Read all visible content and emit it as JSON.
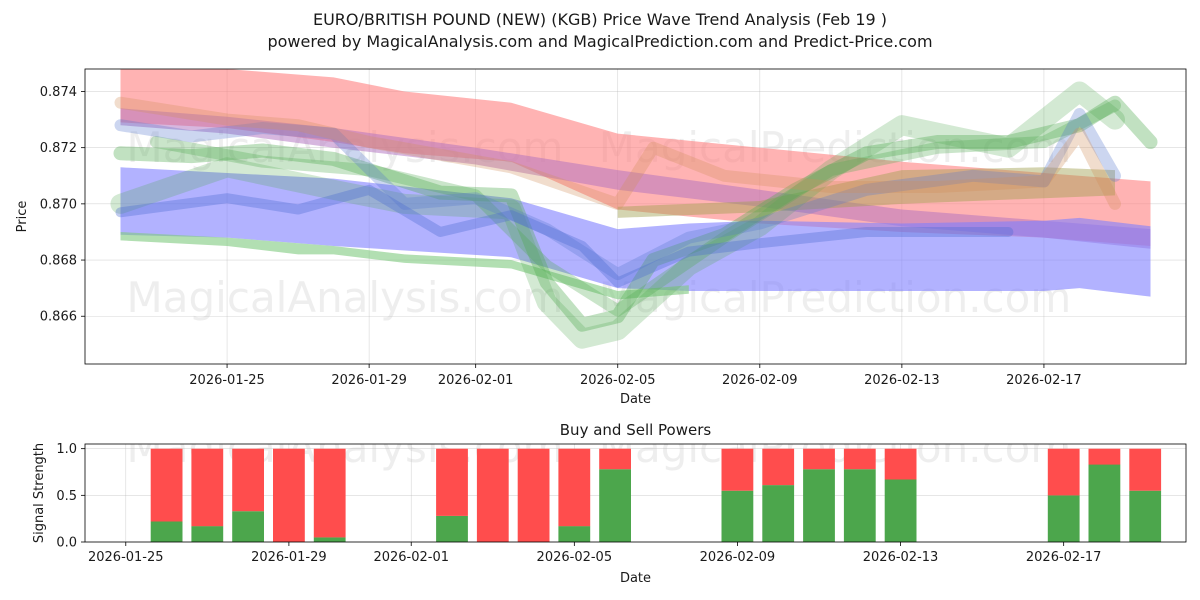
{
  "title_line1": "EURO/BRITISH POUND (NEW) (KGB) Price Wave Trend Analysis (Feb 19 )",
  "title_line2": "powered by MagicalAnalysis.com and MagicalPrediction.com and Predict-Price.com",
  "watermarks": [
    "MagicalAnalysis.com",
    "MagicalPrediction.com"
  ],
  "chart_data": [
    {
      "type": "area",
      "title": "EURO/BRITISH POUND (NEW) (KGB) Price Wave Trend Analysis (Feb 19 )",
      "xlabel": "Date",
      "ylabel": "Price",
      "xlim": [
        "2026-01-21",
        "2026-02-21"
      ],
      "ylim": [
        0.8643,
        0.8748
      ],
      "x_ticks": [
        "2026-01-25",
        "2026-01-29",
        "2026-02-01",
        "2026-02-05",
        "2026-02-09",
        "2026-02-13",
        "2026-02-17"
      ],
      "y_ticks": [
        0.866,
        0.868,
        0.87,
        0.872,
        0.874
      ],
      "y_tick_labels": [
        "0.866",
        "0.868",
        "0.870",
        "0.872",
        "0.874"
      ],
      "grid": true,
      "bands": [
        {
          "name": "red upper band",
          "color": "#ff8080",
          "opacity": 0.6,
          "x": [
            "2026-01-22",
            "2026-01-25",
            "2026-01-28",
            "2026-01-30",
            "2026-02-02",
            "2026-02-05",
            "2026-02-09",
            "2026-02-13",
            "2026-02-17",
            "2026-02-20"
          ],
          "upper": [
            0.875,
            0.8748,
            0.8745,
            0.874,
            0.8736,
            0.8725,
            0.872,
            0.8715,
            0.8711,
            0.8708
          ],
          "lower": [
            0.8729,
            0.8727,
            0.8722,
            0.8718,
            0.8715,
            0.8698,
            0.8693,
            0.869,
            0.8688,
            0.8685
          ]
        },
        {
          "name": "purple band",
          "color": "#b070c0",
          "opacity": 0.5,
          "x": [
            "2026-01-22",
            "2026-01-25",
            "2026-01-28",
            "2026-02-01",
            "2026-02-05",
            "2026-02-09",
            "2026-02-13",
            "2026-02-17",
            "2026-02-20"
          ],
          "upper": [
            0.8734,
            0.8731,
            0.8727,
            0.872,
            0.8712,
            0.8705,
            0.8698,
            0.8694,
            0.8691
          ],
          "lower": [
            0.8728,
            0.8725,
            0.872,
            0.8714,
            0.8705,
            0.8699,
            0.8692,
            0.8688,
            0.8684
          ]
        },
        {
          "name": "blue band",
          "color": "#7f7fff",
          "opacity": 0.6,
          "x": [
            "2026-01-22",
            "2026-01-25",
            "2026-01-28",
            "2026-02-02",
            "2026-02-05",
            "2026-02-07",
            "2026-02-09",
            "2026-02-13",
            "2026-02-17",
            "2026-02-18",
            "2026-02-20"
          ],
          "upper": [
            0.8713,
            0.8711,
            0.8709,
            0.8702,
            0.8691,
            0.8693,
            0.8694,
            0.8693,
            0.8694,
            0.8695,
            0.8692
          ],
          "lower": [
            0.8689,
            0.8688,
            0.8685,
            0.8681,
            0.867,
            0.8669,
            0.8669,
            0.8669,
            0.8669,
            0.867,
            0.8667
          ]
        },
        {
          "name": "green lower band",
          "color": "#7fc97f",
          "opacity": 0.6,
          "x": [
            "2026-01-22",
            "2026-01-25",
            "2026-01-27",
            "2026-01-28",
            "2026-01-30",
            "2026-02-02",
            "2026-02-05",
            "2026-02-07"
          ],
          "upper": [
            0.869,
            0.8688,
            0.8686,
            0.8685,
            0.8682,
            0.868,
            0.8669,
            0.8671
          ],
          "lower": [
            0.8687,
            0.8685,
            0.8682,
            0.8682,
            0.8679,
            0.8677,
            0.8666,
            0.8668
          ]
        },
        {
          "name": "olive band",
          "color": "#a0a050",
          "opacity": 0.45,
          "x": [
            "2026-02-05",
            "2026-02-09",
            "2026-02-13",
            "2026-02-17",
            "2026-02-19"
          ],
          "upper": [
            0.8699,
            0.8701,
            0.8712,
            0.8713,
            0.8712
          ],
          "lower": [
            0.8695,
            0.8697,
            0.87,
            0.8702,
            0.8703
          ]
        }
      ],
      "wave_lines": [
        {
          "name": "green wave 1",
          "color": "#4ea94e",
          "opacity": 0.35,
          "width": 14,
          "x": [
            "2026-01-22",
            "2026-01-24",
            "2026-01-26",
            "2026-01-28",
            "2026-01-29",
            "2026-01-31",
            "2026-02-02",
            "2026-02-03",
            "2026-02-04",
            "2026-02-05",
            "2026-02-06",
            "2026-02-08",
            "2026-02-10",
            "2026-02-12",
            "2026-02-14",
            "2026-02-16",
            "2026-02-18",
            "2026-02-19",
            "2026-02-20"
          ],
          "y": [
            0.8718,
            0.8717,
            0.8719,
            0.8716,
            0.8712,
            0.8704,
            0.8703,
            0.8672,
            0.8657,
            0.866,
            0.868,
            0.8689,
            0.8705,
            0.8718,
            0.8722,
            0.8722,
            0.8728,
            0.8736,
            0.8722
          ]
        },
        {
          "name": "green wave 2",
          "color": "#4ea94e",
          "opacity": 0.25,
          "width": 20,
          "x": [
            "2026-01-22",
            "2026-01-25",
            "2026-01-28",
            "2026-01-30",
            "2026-02-02",
            "2026-02-03",
            "2026-02-04",
            "2026-02-05",
            "2026-02-07",
            "2026-02-09",
            "2026-02-11",
            "2026-02-13",
            "2026-02-16",
            "2026-02-18",
            "2026-02-19"
          ],
          "y": [
            0.87,
            0.8713,
            0.8705,
            0.87,
            0.8698,
            0.8665,
            0.8652,
            0.8655,
            0.8678,
            0.8692,
            0.8712,
            0.8728,
            0.872,
            0.874,
            0.873
          ]
        },
        {
          "name": "green wave 3",
          "color": "#4ea94e",
          "opacity": 0.3,
          "width": 12,
          "x": [
            "2026-01-23",
            "2026-01-26",
            "2026-01-29",
            "2026-02-01",
            "2026-02-03",
            "2026-02-05",
            "2026-02-08",
            "2026-02-11",
            "2026-02-14",
            "2026-02-17",
            "2026-02-19"
          ],
          "y": [
            0.8722,
            0.8715,
            0.8712,
            0.8703,
            0.8678,
            0.8662,
            0.8688,
            0.8712,
            0.872,
            0.8722,
            0.8735
          ]
        },
        {
          "name": "blue wave",
          "color": "#5577cc",
          "opacity": 0.3,
          "width": 12,
          "x": [
            "2026-01-22",
            "2026-01-24",
            "2026-01-26",
            "2026-01-28",
            "2026-01-30",
            "2026-02-01",
            "2026-02-03",
            "2026-02-05",
            "2026-02-07",
            "2026-02-09",
            "2026-02-12",
            "2026-02-15",
            "2026-02-17",
            "2026-02-18",
            "2026-02-19"
          ],
          "y": [
            0.8728,
            0.8724,
            0.8727,
            0.8725,
            0.87,
            0.8702,
            0.8691,
            0.8675,
            0.8688,
            0.8693,
            0.8705,
            0.871,
            0.8708,
            0.8732,
            0.871
          ]
        },
        {
          "name": "orange wave",
          "color": "#d0905a",
          "opacity": 0.3,
          "width": 12,
          "x": [
            "2026-01-22",
            "2026-01-25",
            "2026-01-27",
            "2026-01-29",
            "2026-02-02",
            "2026-02-05",
            "2026-02-06",
            "2026-02-08",
            "2026-02-11",
            "2026-02-14",
            "2026-02-17",
            "2026-02-18",
            "2026-02-19"
          ],
          "y": [
            0.8736,
            0.873,
            0.8728,
            0.8722,
            0.8713,
            0.87,
            0.872,
            0.871,
            0.8706,
            0.8706,
            0.8708,
            0.8725,
            0.87
          ]
        },
        {
          "name": "blue wave 2",
          "color": "#4a6ad0",
          "opacity": 0.35,
          "width": 10,
          "x": [
            "2026-01-22",
            "2026-01-25",
            "2026-01-27",
            "2026-01-29",
            "2026-01-31",
            "2026-02-02",
            "2026-02-04",
            "2026-02-05",
            "2026-02-07",
            "2026-02-09",
            "2026-02-12",
            "2026-02-16"
          ],
          "y": [
            0.8697,
            0.8702,
            0.8698,
            0.8705,
            0.869,
            0.8696,
            0.8685,
            0.8672,
            0.8683,
            0.8686,
            0.869,
            0.869
          ]
        }
      ]
    },
    {
      "type": "bar",
      "title": "Buy and Sell Powers",
      "xlabel": "Date",
      "ylabel": "Signal Strength",
      "xlim": [
        "2026-01-24",
        "2026-02-20"
      ],
      "ylim": [
        0,
        1.05
      ],
      "x_ticks": [
        "2026-01-25",
        "2026-01-29",
        "2026-02-01",
        "2026-02-05",
        "2026-02-09",
        "2026-02-13",
        "2026-02-17"
      ],
      "y_ticks": [
        0.0,
        0.5,
        1.0
      ],
      "y_tick_labels": [
        "0.0",
        "0.5",
        "1.0"
      ],
      "buy_color": "#4ca64c",
      "sell_color": "#ff4d4d",
      "categories": [
        "2026-01-26",
        "2026-01-27",
        "2026-01-28",
        "2026-01-29",
        "2026-01-30",
        "2026-02-02",
        "2026-02-03",
        "2026-02-04",
        "2026-02-05",
        "2026-02-06",
        "2026-02-09",
        "2026-02-10",
        "2026-02-11",
        "2026-02-12",
        "2026-02-13",
        "2026-02-17",
        "2026-02-18",
        "2026-02-19"
      ],
      "series": [
        {
          "name": "Buy",
          "values": [
            0.22,
            0.17,
            0.33,
            0.0,
            0.05,
            0.28,
            0.0,
            0.0,
            0.17,
            0.78,
            0.55,
            0.61,
            0.78,
            0.78,
            0.67,
            0.5,
            0.83,
            0.55
          ]
        },
        {
          "name": "Sell",
          "values": [
            0.78,
            0.83,
            0.67,
            1.0,
            0.95,
            0.72,
            1.0,
            1.0,
            0.83,
            0.22,
            0.45,
            0.39,
            0.22,
            0.22,
            0.33,
            0.5,
            0.17,
            0.45
          ]
        }
      ]
    }
  ]
}
